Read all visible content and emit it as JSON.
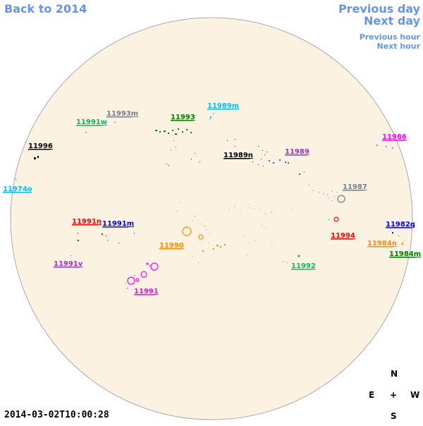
{
  "nav": {
    "back": "Back to 2014",
    "prev_day": "Previous day",
    "next_day": "Next day",
    "prev_hour": "Previous hour",
    "next_hour": "Next hour"
  },
  "timestamp": "2014-03-02T10:00:28",
  "compass": {
    "n": "N",
    "s": "S",
    "e": "E",
    "w": "W",
    "center": "+"
  },
  "colors": {
    "disk_fill": "#FBF2E2",
    "disk_stroke": "#AAAAAA",
    "nav": "#6495ED"
  },
  "regions": [
    {
      "id": "11993m",
      "label": "11993m",
      "color": "#708090"
    },
    {
      "id": "11989m",
      "label": "11989m",
      "color": "#00BFFF"
    },
    {
      "id": "11991w",
      "label": "11991w",
      "color": "#00C060"
    },
    {
      "id": "11993",
      "label": "11993",
      "color": "#008000"
    },
    {
      "id": "11986",
      "label": "11986",
      "color": "#FF00FF"
    },
    {
      "id": "11996",
      "label": "11996",
      "color": "#000000"
    },
    {
      "id": "11989",
      "label": "11989",
      "color": "#9932CC"
    },
    {
      "id": "11989n",
      "label": "11989n",
      "color": "#000000"
    },
    {
      "id": "11974o",
      "label": "11974o",
      "color": "#00BFFF"
    },
    {
      "id": "11987",
      "label": "11987",
      "color": "#708090"
    },
    {
      "id": "11991n",
      "label": "11991n",
      "color": "#FF0000"
    },
    {
      "id": "11991m",
      "label": "11991m",
      "color": "#0000FF"
    },
    {
      "id": "11994",
      "label": "11994",
      "color": "#FF0000"
    },
    {
      "id": "11982q",
      "label": "11982q",
      "color": "#0000FF"
    },
    {
      "id": "11990",
      "label": "11990",
      "color": "#FF8C00"
    },
    {
      "id": "11984n",
      "label": "11984n",
      "color": "#FF8C00"
    },
    {
      "id": "11984m",
      "label": "11984m",
      "color": "#008000"
    },
    {
      "id": "11991v",
      "label": "11991v",
      "color": "#9932CC"
    },
    {
      "id": "11992",
      "label": "11992",
      "color": "#00C060"
    },
    {
      "id": "11991",
      "label": "11991",
      "color": "#FF00FF"
    }
  ]
}
